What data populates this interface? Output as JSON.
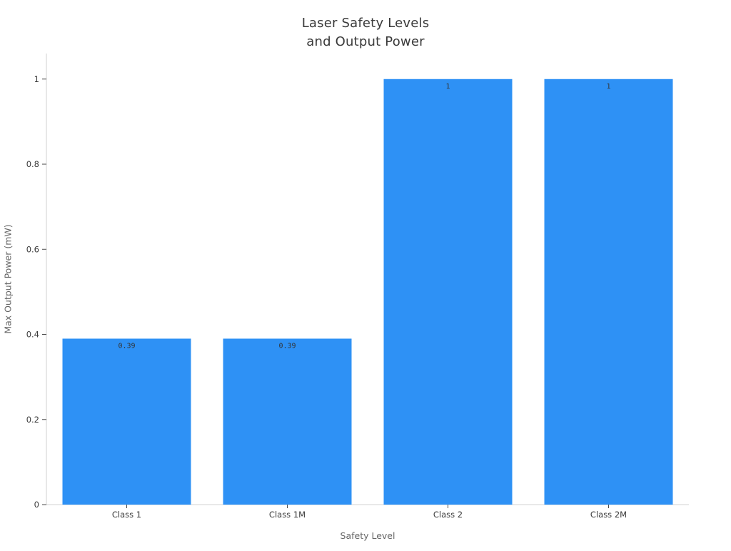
{
  "title_lines": [
    "Laser Safety Levels",
    "and Output Power"
  ],
  "chart_data": {
    "type": "bar",
    "title": "Laser Safety Levels and Output Power",
    "categories": [
      "Class 1",
      "Class 1M",
      "Class 2",
      "Class 2M"
    ],
    "values": [
      0.39,
      0.39,
      1,
      1
    ],
    "bar_labels": [
      "0.39",
      "0.39",
      "1",
      "1"
    ],
    "xlabel": "Safety Level",
    "ylabel": "Max Output Power (mW)",
    "ylim": [
      0,
      1.06
    ],
    "yticks": [
      0,
      0.2,
      0.4,
      0.6,
      0.8,
      1
    ],
    "ytick_labels": [
      "0",
      "0.2",
      "0.4",
      "0.6",
      "0.8",
      "1"
    ],
    "grid": false,
    "legend_position": "none",
    "colors": {
      "bar": "#2E91F5",
      "axis_line": "#DCDCDC",
      "tick_mark": "#4a4a4a",
      "tick_label": "#3a3a3a",
      "bar_value_label": "#333333"
    }
  }
}
